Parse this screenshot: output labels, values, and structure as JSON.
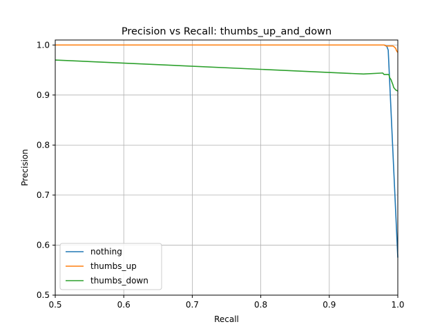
{
  "chart_data": {
    "type": "line",
    "title": "Precision vs Recall: thumbs_up_and_down",
    "xlabel": "Recall",
    "ylabel": "Precision",
    "xlim": [
      0.5,
      1.0
    ],
    "ylim": [
      0.5,
      1.01
    ],
    "xticks": [
      0.5,
      0.6,
      0.7,
      0.8,
      0.9,
      1.0
    ],
    "xtick_labels": [
      "0.5",
      "0.6",
      "0.7",
      "0.8",
      "0.9",
      "1.0"
    ],
    "yticks": [
      0.5,
      0.6,
      0.7,
      0.8,
      0.9,
      1.0
    ],
    "ytick_labels": [
      "0.5",
      "0.6",
      "0.7",
      "0.8",
      "0.9",
      "1.0"
    ],
    "grid": true,
    "legend_position": "lower-left",
    "series": [
      {
        "name": "nothing",
        "color": "#1f77b4",
        "x": [
          0.5,
          0.98,
          0.982,
          0.984,
          0.986,
          1.0
        ],
        "y": [
          1.0,
          1.0,
          0.999,
          0.997,
          0.99,
          0.575
        ]
      },
      {
        "name": "thumbs_up",
        "color": "#ff7f0e",
        "x": [
          0.5,
          0.98,
          0.983,
          0.993,
          0.995,
          0.997,
          0.998,
          1.0
        ],
        "y": [
          1.0,
          1.0,
          0.998,
          0.998,
          0.996,
          0.993,
          0.989,
          0.985
        ]
      },
      {
        "name": "thumbs_down",
        "color": "#2ca02c",
        "x": [
          0.5,
          0.95,
          0.978,
          0.98,
          0.987,
          0.988,
          0.99,
          0.993,
          0.994,
          0.997,
          1.0
        ],
        "y": [
          0.97,
          0.942,
          0.944,
          0.941,
          0.941,
          0.935,
          0.931,
          0.92,
          0.915,
          0.91,
          0.908
        ]
      }
    ]
  }
}
